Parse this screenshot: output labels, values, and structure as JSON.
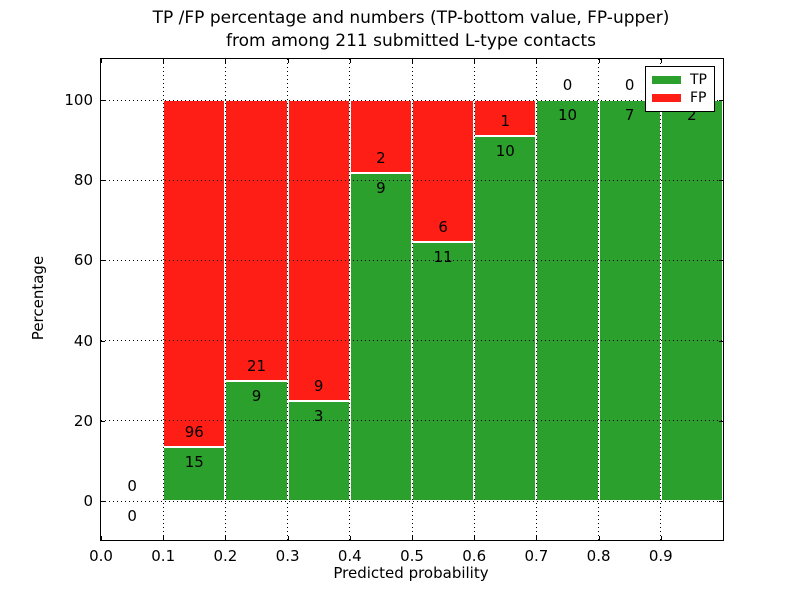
{
  "title": {
    "line1": "TP /FP percentage and numbers (TP-bottom value, FP-upper)",
    "line2": "from among 211 submitted L-type contacts"
  },
  "axes": {
    "xlabel": "Predicted probability",
    "ylabel": "Percentage",
    "x_tick_labels": [
      "0.0",
      "0.1",
      "0.2",
      "0.3",
      "0.4",
      "0.5",
      "0.6",
      "0.7",
      "0.8",
      "0.9"
    ],
    "y_tick_labels": [
      "0",
      "20",
      "40",
      "60",
      "80",
      "100"
    ]
  },
  "legend": {
    "items": [
      {
        "label": "TP",
        "color": "#2ca02c"
      },
      {
        "label": "FP",
        "color": "#ff1e15"
      }
    ]
  },
  "colors": {
    "tp": "#2ca02c",
    "fp": "#ff1e15",
    "grid": "#000000",
    "bar_edge": "#ffffff",
    "background": "#ffffff",
    "text": "#000000"
  },
  "chart_data": {
    "type": "bar",
    "subtype": "stacked-percentage-histogram",
    "title": "TP /FP percentage and numbers (TP-bottom value, FP-upper) from among 211 submitted L-type contacts",
    "xlabel": "Predicted probability",
    "ylabel": "Percentage",
    "xlim": [
      0.0,
      1.0
    ],
    "ylim": [
      -10,
      110.5
    ],
    "x_ticks": [
      0.0,
      0.1,
      0.2,
      0.3,
      0.4,
      0.5,
      0.6,
      0.7,
      0.8,
      0.9
    ],
    "y_ticks": [
      0,
      20,
      40,
      60,
      80,
      100
    ],
    "bin_edges": [
      0.0,
      0.1,
      0.2,
      0.3,
      0.4,
      0.5,
      0.6,
      0.7,
      0.8,
      0.9,
      1.0
    ],
    "categories": [
      "0.0-0.1",
      "0.1-0.2",
      "0.2-0.3",
      "0.3-0.4",
      "0.4-0.5",
      "0.5-0.6",
      "0.6-0.7",
      "0.7-0.8",
      "0.8-0.9",
      "0.9-1.0"
    ],
    "series": [
      {
        "name": "TP",
        "color": "#2ca02c",
        "counts": [
          0,
          15,
          9,
          3,
          9,
          11,
          10,
          10,
          7,
          2
        ]
      },
      {
        "name": "FP",
        "color": "#ff1e15",
        "counts": [
          0,
          96,
          21,
          9,
          2,
          6,
          1,
          0,
          0,
          0
        ]
      }
    ],
    "tp_percent_of_bin": [
      0,
      13.51,
      30,
      25,
      81.82,
      64.71,
      90.91,
      100,
      100,
      100
    ],
    "total_submitted": 211,
    "grid": "dotted, black, drawn above bars",
    "legend_position": "upper-right",
    "bar_edge_color": "#ffffff",
    "label_convention": "TP count below segment boundary, FP count above segment boundary"
  }
}
